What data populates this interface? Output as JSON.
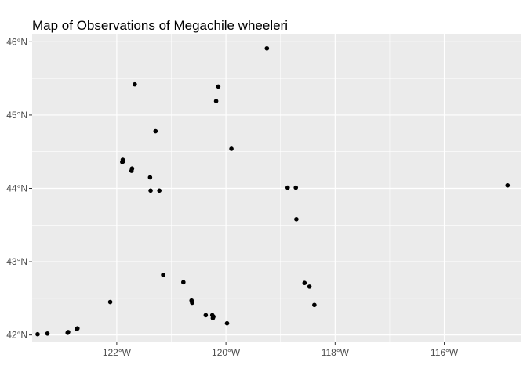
{
  "chart_data": {
    "type": "scatter",
    "title": "Map of Observations of Megachile wheeleri",
    "xlabel": "",
    "ylabel": "",
    "xlim": [
      -123.55,
      -114.6
    ],
    "ylim": [
      41.9,
      46.1
    ],
    "x_ticks": [
      {
        "value": -122,
        "label": "122°W"
      },
      {
        "value": -120,
        "label": "120°W"
      },
      {
        "value": -118,
        "label": "118°W"
      },
      {
        "value": -116,
        "label": "116°W"
      }
    ],
    "y_ticks": [
      {
        "value": 42,
        "label": "42°N"
      },
      {
        "value": 43,
        "label": "43°N"
      },
      {
        "value": 44,
        "label": "44°N"
      },
      {
        "value": 45,
        "label": "45°N"
      },
      {
        "value": 46,
        "label": "46°N"
      }
    ],
    "grid": true,
    "colors": {
      "panel": "#ebebeb",
      "grid_major": "#ffffff",
      "point": "#000000",
      "tick": "#333333"
    },
    "points": [
      {
        "lon": -123.45,
        "lat": 42.01
      },
      {
        "lon": -123.27,
        "lat": 42.02
      },
      {
        "lon": -122.9,
        "lat": 42.03
      },
      {
        "lon": -122.89,
        "lat": 42.04
      },
      {
        "lon": -122.73,
        "lat": 42.08
      },
      {
        "lon": -122.72,
        "lat": 42.09
      },
      {
        "lon": -122.12,
        "lat": 42.45
      },
      {
        "lon": -121.67,
        "lat": 45.42
      },
      {
        "lon": -121.89,
        "lat": 44.39
      },
      {
        "lon": -121.88,
        "lat": 44.37
      },
      {
        "lon": -121.9,
        "lat": 44.36
      },
      {
        "lon": -121.72,
        "lat": 44.27
      },
      {
        "lon": -121.73,
        "lat": 44.24
      },
      {
        "lon": -121.39,
        "lat": 44.15
      },
      {
        "lon": -121.38,
        "lat": 43.97
      },
      {
        "lon": -121.22,
        "lat": 43.97
      },
      {
        "lon": -121.29,
        "lat": 44.78
      },
      {
        "lon": -121.15,
        "lat": 42.82
      },
      {
        "lon": -120.78,
        "lat": 42.72
      },
      {
        "lon": -120.63,
        "lat": 42.47
      },
      {
        "lon": -120.62,
        "lat": 42.44
      },
      {
        "lon": -120.37,
        "lat": 42.27
      },
      {
        "lon": -120.25,
        "lat": 42.27
      },
      {
        "lon": -120.24,
        "lat": 42.23
      },
      {
        "lon": -120.23,
        "lat": 42.25
      },
      {
        "lon": -119.98,
        "lat": 42.16
      },
      {
        "lon": -120.14,
        "lat": 45.39
      },
      {
        "lon": -120.18,
        "lat": 45.19
      },
      {
        "lon": -119.9,
        "lat": 44.54
      },
      {
        "lon": -119.25,
        "lat": 45.91
      },
      {
        "lon": -118.87,
        "lat": 44.01
      },
      {
        "lon": -118.72,
        "lat": 44.01
      },
      {
        "lon": -118.71,
        "lat": 43.58
      },
      {
        "lon": -118.56,
        "lat": 42.71
      },
      {
        "lon": -118.47,
        "lat": 42.66
      },
      {
        "lon": -118.38,
        "lat": 42.41
      },
      {
        "lon": -114.84,
        "lat": 44.04
      }
    ]
  }
}
